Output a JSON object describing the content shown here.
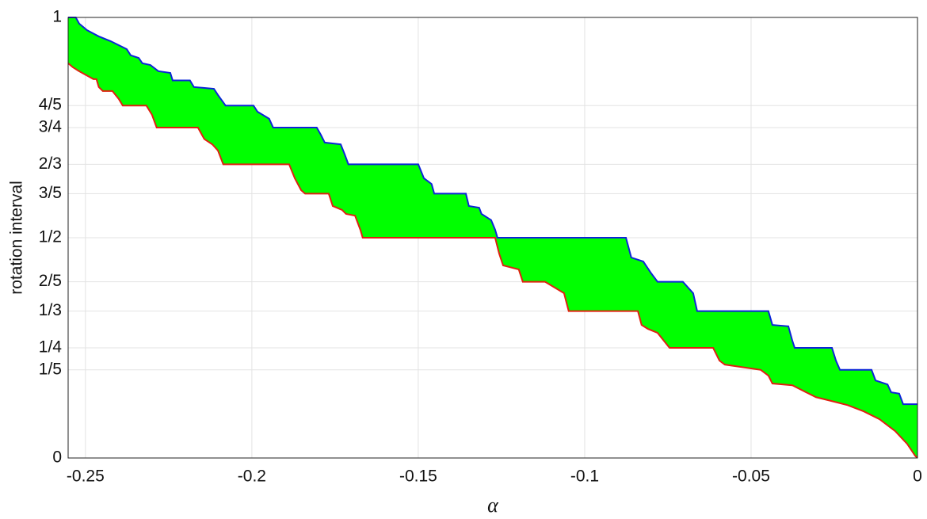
{
  "chart_data": {
    "type": "area",
    "xlabel": "α",
    "ylabel": "rotation interval",
    "xlim": [
      -0.2552,
      0
    ],
    "ylim": [
      0,
      1
    ],
    "xticks": [
      -0.25,
      -0.2,
      -0.15,
      -0.1,
      -0.05,
      0
    ],
    "yticks": [
      0,
      {
        "value": 0.2,
        "label": "1/5"
      },
      {
        "value": 0.25,
        "label": "1/4"
      },
      {
        "value": 0.3333,
        "label": "1/3"
      },
      {
        "value": 0.4,
        "label": "2/5"
      },
      {
        "value": 0.5,
        "label": "1/2"
      },
      {
        "value": 0.6,
        "label": "3/5"
      },
      {
        "value": 0.6667,
        "label": "2/3"
      },
      {
        "value": 0.75,
        "label": "3/4"
      },
      {
        "value": 0.8,
        "label": "4/5"
      },
      1
    ],
    "grid": true,
    "fill_color": "#00ff00",
    "series": [
      {
        "color": "#0b24d8",
        "x": [
          -0.2552,
          -0.2529,
          -0.2519,
          -0.2495,
          -0.246,
          -0.2424,
          -0.24,
          -0.2376,
          -0.2364,
          -0.234,
          -0.2329,
          -0.2305,
          -0.2281,
          -0.2245,
          -0.2238,
          -0.2186,
          -0.2174,
          -0.2114,
          -0.2102,
          -0.2079,
          -0.1995,
          -0.1983,
          -0.1948,
          -0.1936,
          -0.1805,
          -0.1793,
          -0.1781,
          -0.1733,
          -0.1721,
          -0.171,
          -0.15,
          -0.1483,
          -0.146,
          -0.1452,
          -0.1357,
          -0.1348,
          -0.1317,
          -0.131,
          -0.1281,
          -0.1269,
          -0.1262,
          -0.0876,
          -0.086,
          -0.0824,
          -0.08,
          -0.0781,
          -0.0705,
          -0.0674,
          -0.0662,
          -0.0448,
          -0.0436,
          -0.0388,
          -0.0376,
          -0.0369,
          -0.0257,
          -0.0245,
          -0.0233,
          -0.0138,
          -0.0126,
          -0.009,
          -0.0079,
          -0.0055,
          -0.0043,
          0
        ],
        "values": [
          1,
          1,
          0.986,
          0.971,
          0.957,
          0.946,
          0.937,
          0.928,
          0.914,
          0.908,
          0.896,
          0.892,
          0.878,
          0.874,
          0.857,
          0.857,
          0.842,
          0.838,
          0.824,
          0.8,
          0.8,
          0.786,
          0.77,
          0.75,
          0.75,
          0.734,
          0.716,
          0.712,
          0.689,
          0.6667,
          0.6667,
          0.635,
          0.622,
          0.6,
          0.6,
          0.572,
          0.568,
          0.554,
          0.54,
          0.518,
          0.5,
          0.5,
          0.455,
          0.446,
          0.419,
          0.4,
          0.4,
          0.374,
          0.3333,
          0.3333,
          0.302,
          0.299,
          0.266,
          0.25,
          0.25,
          0.221,
          0.2,
          0.2,
          0.176,
          0.167,
          0.149,
          0.146,
          0.122,
          0.122
        ]
      },
      {
        "color": "#e0200f",
        "x": [
          -0.2552,
          -0.2538,
          -0.2519,
          -0.2476,
          -0.2467,
          -0.246,
          -0.2448,
          -0.2419,
          -0.24,
          -0.2388,
          -0.2317,
          -0.23,
          -0.2286,
          -0.2162,
          -0.2143,
          -0.2119,
          -0.2102,
          -0.2086,
          -0.1888,
          -0.1871,
          -0.1852,
          -0.184,
          -0.1769,
          -0.1757,
          -0.1729,
          -0.1717,
          -0.169,
          -0.1674,
          -0.1667,
          -0.1269,
          -0.1257,
          -0.1245,
          -0.1198,
          -0.1186,
          -0.1119,
          -0.1062,
          -0.1048,
          -0.084,
          -0.0829,
          -0.081,
          -0.0781,
          -0.0745,
          -0.0614,
          -0.0595,
          -0.0579,
          -0.0471,
          -0.0448,
          -0.0436,
          -0.0376,
          -0.0329,
          -0.0305,
          -0.0257,
          -0.021,
          -0.0162,
          -0.0114,
          -0.0067,
          -0.0031,
          -0.0007,
          0
        ],
        "values": [
          0.896,
          0.887,
          0.878,
          0.86,
          0.86,
          0.842,
          0.833,
          0.833,
          0.815,
          0.8,
          0.8,
          0.779,
          0.75,
          0.75,
          0.724,
          0.712,
          0.698,
          0.6667,
          0.6667,
          0.635,
          0.608,
          0.6,
          0.6,
          0.572,
          0.563,
          0.554,
          0.55,
          0.518,
          0.5,
          0.5,
          0.464,
          0.437,
          0.428,
          0.4,
          0.4,
          0.374,
          0.3333,
          0.3333,
          0.302,
          0.293,
          0.284,
          0.25,
          0.25,
          0.221,
          0.212,
          0.2,
          0.187,
          0.169,
          0.165,
          0.147,
          0.138,
          0.129,
          0.12,
          0.106,
          0.088,
          0.061,
          0.032,
          0.005,
          0
        ]
      }
    ]
  }
}
